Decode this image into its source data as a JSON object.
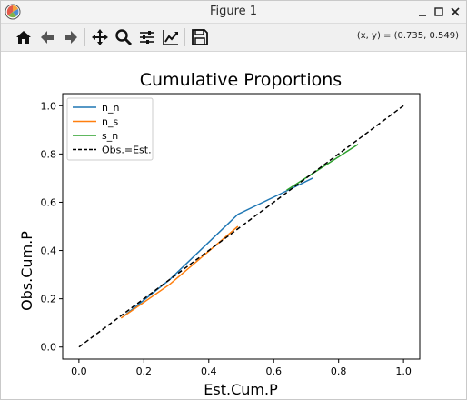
{
  "window": {
    "title": "Figure 1",
    "app_icon": "matplotlib-icon",
    "controls": [
      "minimize-icon",
      "maximize-icon",
      "close-icon"
    ]
  },
  "toolbar": {
    "tools": [
      "home-icon",
      "back-arrow-icon",
      "forward-arrow-icon",
      "pan-icon",
      "zoom-icon",
      "subplots-config-icon",
      "axes-edit-icon",
      "save-icon"
    ],
    "coordinates": "(x, y) = (0.735, 0.549)"
  },
  "chart_data": {
    "type": "line",
    "title": "Cumulative Proportions",
    "xlabel": "Est.Cum.P",
    "ylabel": "Obs.Cum.P",
    "xlim": [
      -0.05,
      1.05
    ],
    "ylim": [
      -0.05,
      1.05
    ],
    "xticks": [
      0.0,
      0.2,
      0.4,
      0.6,
      0.8,
      1.0
    ],
    "yticks": [
      0.0,
      0.2,
      0.4,
      0.6,
      0.8,
      1.0
    ],
    "xtick_labels": [
      "0.0",
      "0.2",
      "0.4",
      "0.6",
      "0.8",
      "1.0"
    ],
    "ytick_labels": [
      "0.0",
      "0.2",
      "0.4",
      "0.6",
      "0.8",
      "1.0"
    ],
    "grid": false,
    "legend": "upper-left",
    "series": [
      {
        "name": "n_n",
        "color": "#1f77b4",
        "dash": "solid",
        "x": [
          0.14,
          0.28,
          0.49,
          0.66,
          0.72
        ],
        "y": [
          0.13,
          0.28,
          0.55,
          0.66,
          0.7
        ]
      },
      {
        "name": "n_s",
        "color": "#ff7f0e",
        "dash": "solid",
        "x": [
          0.13,
          0.28,
          0.49
        ],
        "y": [
          0.12,
          0.26,
          0.5
        ]
      },
      {
        "name": "s_n",
        "color": "#2ca02c",
        "dash": "solid",
        "x": [
          0.64,
          0.86
        ],
        "y": [
          0.65,
          0.84
        ]
      },
      {
        "name": "Obs.=Est.",
        "color": "#000000",
        "dash": "dashed",
        "x": [
          0.0,
          1.0
        ],
        "y": [
          0.0,
          1.0
        ]
      }
    ]
  }
}
